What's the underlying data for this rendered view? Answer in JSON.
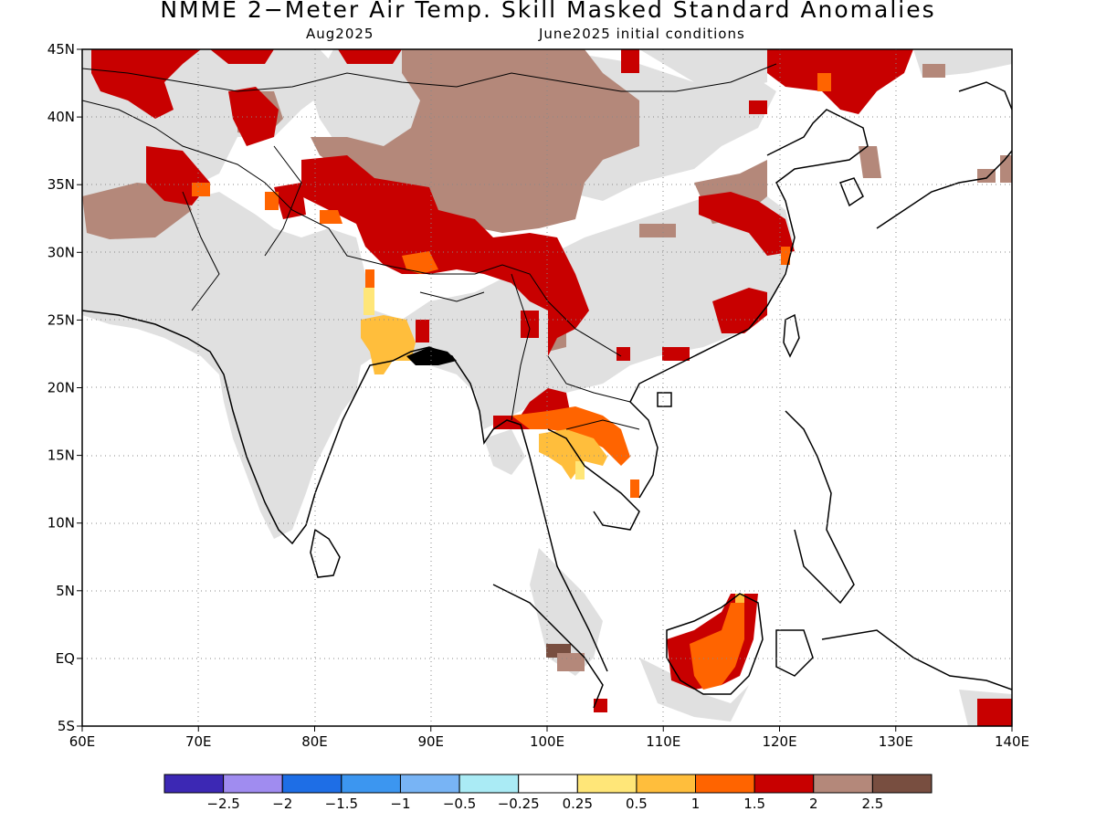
{
  "title": "NMME 2−Meter Air Temp. Skill Masked Standard Anomalies",
  "target_month": "Aug2025",
  "initial_conditions": "June2025 initial conditions",
  "map": {
    "lon_range": [
      60,
      140
    ],
    "lat_range": [
      -5,
      45
    ],
    "lon_ticks": [
      "60E",
      "70E",
      "80E",
      "90E",
      "100E",
      "110E",
      "120E",
      "130E",
      "140E"
    ],
    "lat_ticks": [
      "45N",
      "40N",
      "35N",
      "30N",
      "25N",
      "20N",
      "15N",
      "10N",
      "5N",
      "EQ",
      "5S"
    ],
    "grid": "dotted",
    "masked_color": "#e0e0e0"
  },
  "legend": {
    "labels": [
      "−2.5",
      "−2",
      "−1.5",
      "−1",
      "−0.5",
      "−0.25",
      "0.25",
      "0.5",
      "1",
      "1.5",
      "2",
      "2.5"
    ],
    "colors": [
      "#3c28b4",
      "#a08cf0",
      "#1e6ee6",
      "#3c96f0",
      "#78b4f5",
      "#aaebf5",
      "#ffffff",
      "#ffe678",
      "#ffbe3c",
      "#ff6400",
      "#c80000",
      "#b4887a",
      "#784e40"
    ]
  },
  "regions": [
    {
      "name": "Tibetan Plateau / Western China",
      "category": "2.5+"
    },
    {
      "name": "Northeast China / Korea",
      "category": "1.5–2"
    },
    {
      "name": "Myanmar / Thailand",
      "category": "0.5–1.5"
    },
    {
      "name": "Bangladesh / Eastern India",
      "category": "0.5–1"
    },
    {
      "name": "Borneo",
      "category": "1–2"
    }
  ]
}
